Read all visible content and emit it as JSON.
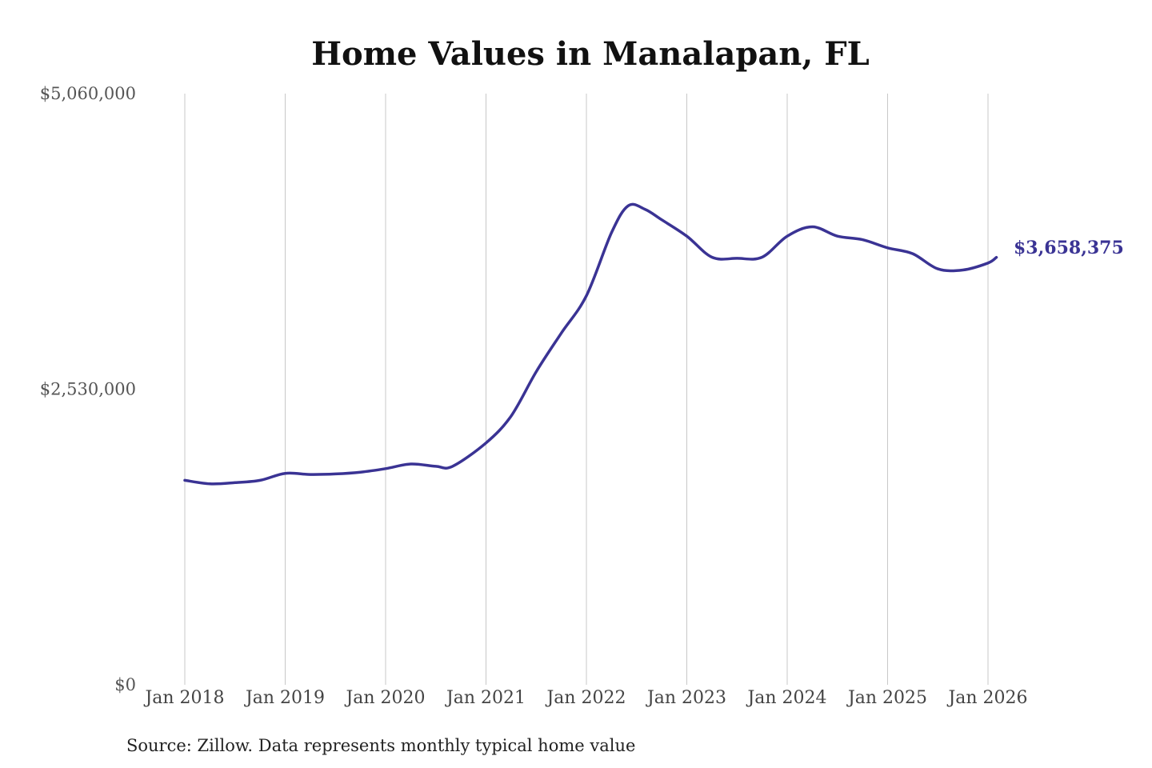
{
  "chart_data": {
    "type": "line",
    "title": "Home Values in Manalapan, FL",
    "source": "Source: Zillow. Data represents monthly typical home value",
    "series_color": "#3a3394",
    "grid": "vertical",
    "ylim": [
      0,
      5060000
    ],
    "y_ticks": [
      {
        "value": 0,
        "label": "$0"
      },
      {
        "value": 2530000,
        "label": "$2,530,000"
      },
      {
        "value": 5060000,
        "label": "$5,060,000"
      }
    ],
    "x_ticks": [
      {
        "date": "2018-01",
        "label": "Jan 2018"
      },
      {
        "date": "2019-01",
        "label": "Jan 2019"
      },
      {
        "date": "2020-01",
        "label": "Jan 2020"
      },
      {
        "date": "2021-01",
        "label": "Jan 2021"
      },
      {
        "date": "2022-01",
        "label": "Jan 2022"
      },
      {
        "date": "2023-01",
        "label": "Jan 2023"
      },
      {
        "date": "2024-01",
        "label": "Jan 2024"
      },
      {
        "date": "2025-01",
        "label": "Jan 2025"
      },
      {
        "date": "2026-01",
        "label": "Jan 2026"
      }
    ],
    "end_label": "$3,658,375",
    "series": [
      {
        "points": [
          {
            "x": "2018-01",
            "y": 1750000
          },
          {
            "x": "2018-04",
            "y": 1720000
          },
          {
            "x": "2018-07",
            "y": 1730000
          },
          {
            "x": "2018-10",
            "y": 1750000
          },
          {
            "x": "2019-01",
            "y": 1810000
          },
          {
            "x": "2019-04",
            "y": 1800000
          },
          {
            "x": "2019-07",
            "y": 1805000
          },
          {
            "x": "2019-10",
            "y": 1820000
          },
          {
            "x": "2020-01",
            "y": 1850000
          },
          {
            "x": "2020-04",
            "y": 1890000
          },
          {
            "x": "2020-07",
            "y": 1870000
          },
          {
            "x": "2020-09",
            "y": 1870000
          },
          {
            "x": "2021-01",
            "y": 2070000
          },
          {
            "x": "2021-04",
            "y": 2300000
          },
          {
            "x": "2021-07",
            "y": 2680000
          },
          {
            "x": "2021-10",
            "y": 3010000
          },
          {
            "x": "2022-01",
            "y": 3330000
          },
          {
            "x": "2022-04",
            "y": 3870000
          },
          {
            "x": "2022-06",
            "y": 4100000
          },
          {
            "x": "2022-08",
            "y": 4070000
          },
          {
            "x": "2022-10",
            "y": 3980000
          },
          {
            "x": "2023-01",
            "y": 3840000
          },
          {
            "x": "2023-04",
            "y": 3660000
          },
          {
            "x": "2023-07",
            "y": 3650000
          },
          {
            "x": "2023-10",
            "y": 3660000
          },
          {
            "x": "2024-01",
            "y": 3840000
          },
          {
            "x": "2024-04",
            "y": 3920000
          },
          {
            "x": "2024-07",
            "y": 3840000
          },
          {
            "x": "2024-10",
            "y": 3810000
          },
          {
            "x": "2025-01",
            "y": 3740000
          },
          {
            "x": "2025-04",
            "y": 3690000
          },
          {
            "x": "2025-07",
            "y": 3560000
          },
          {
            "x": "2025-10",
            "y": 3550000
          },
          {
            "x": "2026-01",
            "y": 3610000
          },
          {
            "x": "2026-02",
            "y": 3658375
          }
        ]
      }
    ]
  }
}
